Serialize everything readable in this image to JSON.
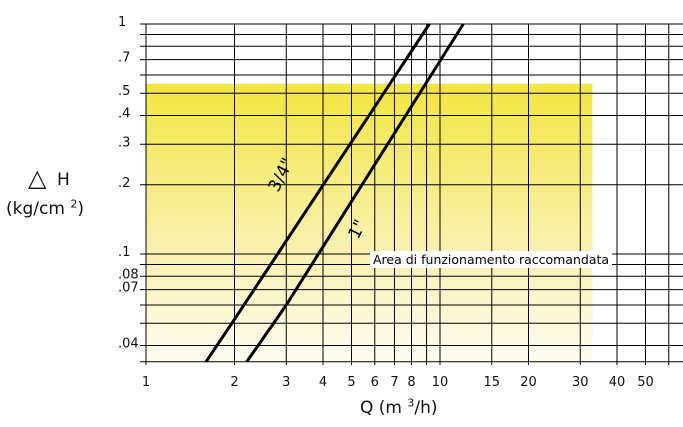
{
  "chart_data": {
    "type": "line",
    "xlabel": "Q (m 3/h)",
    "xlabel_parts": {
      "main": "Q (m ",
      "sup": "3",
      "tail": "/h)"
    },
    "ylabel": "ΔH (kg/cm 2)",
    "ylabel_parts": {
      "symbol": "△",
      "letter": "H",
      "unit_main": "(kg/cm ",
      "unit_sup": "2",
      "unit_tail": ")"
    },
    "x_scale": "log",
    "y_scale": "log",
    "xlim": [
      1,
      60
    ],
    "ylim": [
      0.034,
      1.0
    ],
    "x_ticks": [
      {
        "value": 1,
        "label": "1"
      },
      {
        "value": 2,
        "label": "2"
      },
      {
        "value": 3,
        "label": "3"
      },
      {
        "value": 4,
        "label": "4"
      },
      {
        "value": 5,
        "label": "5"
      },
      {
        "value": 6,
        "label": "6"
      },
      {
        "value": 7,
        "label": "7"
      },
      {
        "value": 8,
        "label": "8"
      },
      {
        "value": 10,
        "label": "10"
      },
      {
        "value": 15,
        "label": "15"
      },
      {
        "value": 20,
        "label": "20"
      },
      {
        "value": 30,
        "label": "30"
      },
      {
        "value": 40,
        "label": "40"
      },
      {
        "value": 50,
        "label": "50"
      }
    ],
    "y_ticks": [
      {
        "value": 1,
        "label": "1"
      },
      {
        "value": 0.7,
        "label": ".7"
      },
      {
        "value": 0.5,
        "label": ".5"
      },
      {
        "value": 0.4,
        "label": ".4"
      },
      {
        "value": 0.3,
        "label": ".3"
      },
      {
        "value": 0.2,
        "label": ".2"
      },
      {
        "value": 0.1,
        "label": ".1"
      },
      {
        "value": 0.08,
        "label": ".08"
      },
      {
        "value": 0.07,
        "label": ".07"
      },
      {
        "value": 0.04,
        "label": ".04"
      }
    ],
    "x_grid": [
      1,
      2,
      3,
      4,
      5,
      6,
      7,
      8,
      9,
      10,
      15,
      20,
      30,
      40,
      50,
      60
    ],
    "y_grid": [
      1,
      0.9,
      0.8,
      0.7,
      0.6,
      0.5,
      0.4,
      0.3,
      0.2,
      0.1,
      0.09,
      0.08,
      0.07,
      0.06,
      0.05,
      0.04,
      0.034
    ],
    "grid": true,
    "series": [
      {
        "name": "3/4\"",
        "x": [
          1.6,
          2.0,
          9.2
        ],
        "y": [
          0.034,
          0.052,
          1.0
        ]
      },
      {
        "name": "1\"",
        "x": [
          2.2,
          3.0,
          12.0
        ],
        "y": [
          0.034,
          0.06,
          1.0
        ]
      }
    ],
    "recommended_area": {
      "label": "Area di funzionamento raccomandata",
      "x_range": [
        1,
        33
      ],
      "y_range": [
        0.034,
        0.55
      ],
      "color": "#f5e84a"
    }
  }
}
